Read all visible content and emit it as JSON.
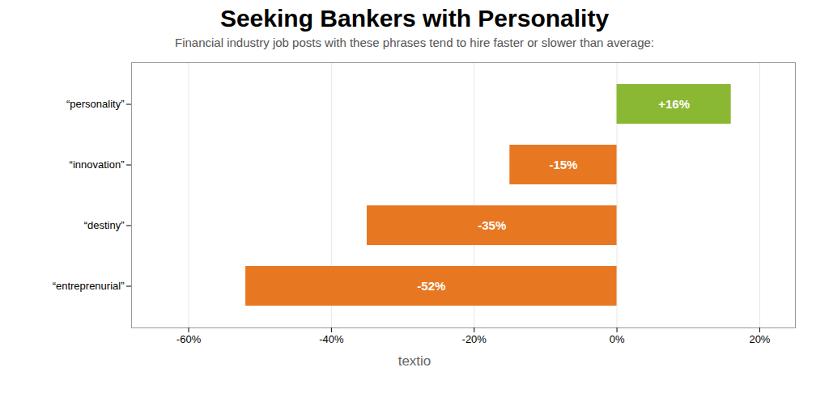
{
  "chart_data": {
    "type": "bar",
    "orientation": "horizontal",
    "title": "Seeking Bankers with Personality",
    "subtitle": "Financial industry job posts with these phrases tend to hire faster or slower than average:",
    "categories": [
      "“personality”",
      "“innovation”",
      "“destiny”",
      "“entreprenurial”"
    ],
    "values": [
      16,
      -15,
      -35,
      -52
    ],
    "value_labels": [
      "+16%",
      "-15%",
      "-35%",
      "-52%"
    ],
    "data_labels": true,
    "colors": [
      "#8ab833",
      "#e87722",
      "#e87722",
      "#e87722"
    ],
    "xlim": [
      -68,
      25
    ],
    "xticks": [
      {
        "value": -60,
        "label": "-60%"
      },
      {
        "value": -40,
        "label": "-40%"
      },
      {
        "value": -20,
        "label": "-20%"
      },
      {
        "value": 0,
        "label": "0%"
      },
      {
        "value": 20,
        "label": "20%"
      }
    ],
    "grid": true,
    "annotations": [
      "textio"
    ]
  }
}
